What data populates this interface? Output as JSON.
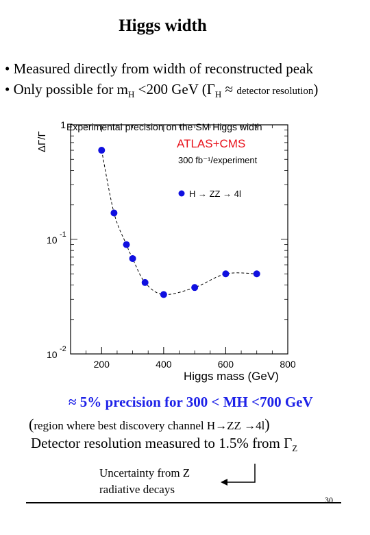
{
  "slide": {
    "title": "Higgs width",
    "bullet1": "• Measured directly from width of reconstructed peak",
    "bullet2": {
      "prefix": "• Only possible for m",
      "sub": "H",
      "middle": " <200 GeV (Γ",
      "sub2": "H",
      "approx": " ≈ ",
      "small": "detector resolution",
      "close": ")"
    },
    "precision_text": "≈ 5% precision for 300 < MH <700 GeV",
    "region_text": {
      "open": "(",
      "body": "region where best discovery channel H→ZZ →4l",
      "close": ")"
    },
    "detector_resolution": "Detector resolution measured to 1.5% from Γ",
    "detector_resolution_sub": "Z",
    "uncertainty_line1": "Uncertainty from Z",
    "uncertainty_line2": "radiative decays",
    "page_number": "30"
  },
  "chart_data": {
    "type": "scatter",
    "title": "Experimental precision on the SM Higgs width",
    "annotation1": "ATLAS+CMS",
    "annotation2": "300 fb⁻¹/experiment",
    "legend_label": "H → ZZ → 4l",
    "xlabel": "Higgs mass (GeV)",
    "ylabel": "ΔΓ/Γ",
    "xlim": [
      100,
      800
    ],
    "ylim": [
      0.01,
      1
    ],
    "y_scale": "log",
    "x_ticks": [
      "200",
      "400",
      "600",
      "800"
    ],
    "y_ticks": [
      {
        "base": "1",
        "exp": ""
      },
      {
        "base": "10",
        "exp": "-1"
      },
      {
        "base": "10",
        "exp": "-2"
      }
    ],
    "series": [
      {
        "name": "H → ZZ → 4l",
        "color": "#1010e0",
        "x": [
          200,
          240,
          280,
          300,
          340,
          400,
          500,
          600,
          700
        ],
        "y": [
          0.6,
          0.17,
          0.09,
          0.068,
          0.042,
          0.033,
          0.038,
          0.05,
          0.05
        ]
      }
    ],
    "grid": false,
    "legend_position": "top-right"
  }
}
